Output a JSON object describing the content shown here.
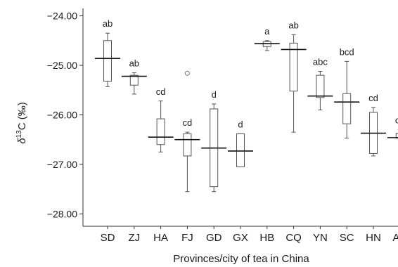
{
  "chart_data": {
    "type": "box",
    "title": "",
    "xlabel": "Provinces/city of tea in China",
    "ylabel_symbol": "δ",
    "ylabel_superscript": "13",
    "ylabel_suffix": "C (‰)",
    "ylim": [
      -28.25,
      -23.85
    ],
    "yticks": [
      -24.0,
      -25.0,
      -26.0,
      -27.0,
      -28.0
    ],
    "ytick_labels": [
      "−24.00",
      "−25.00",
      "−26.00",
      "−27.00",
      "−28.00"
    ],
    "grid": false,
    "categories": [
      "SD",
      "ZJ",
      "HA",
      "FJ",
      "GD",
      "GX",
      "HB",
      "CQ",
      "YN",
      "SC",
      "HN",
      "AH"
    ],
    "letters": [
      "ab",
      "ab",
      "cd",
      "cd",
      "d",
      "d",
      "a",
      "ab",
      "abc",
      "bcd",
      "cd",
      "cd"
    ],
    "boxes": [
      {
        "whisker_high": -24.35,
        "q3": -24.5,
        "q1": -25.32,
        "whisker_low": -25.43,
        "mean": -24.86,
        "outliers": []
      },
      {
        "whisker_high": -25.15,
        "q3": -25.2,
        "q1": -25.4,
        "whisker_low": -25.58,
        "mean": -25.22,
        "outliers": []
      },
      {
        "whisker_high": -25.72,
        "q3": -26.08,
        "q1": -26.6,
        "whisker_low": -26.75,
        "mean": -26.45,
        "outliers": []
      },
      {
        "whisker_high": -26.35,
        "q3": -26.38,
        "q1": -26.83,
        "whisker_low": -27.55,
        "mean": -26.5,
        "outliers": [
          -25.16
        ]
      },
      {
        "whisker_high": -25.78,
        "q3": -25.88,
        "q1": -27.45,
        "whisker_low": -27.55,
        "mean": -26.67,
        "outliers": []
      },
      {
        "whisker_high": -26.38,
        "q3": -26.38,
        "q1": -27.05,
        "whisker_low": -27.05,
        "mean": -26.73,
        "outliers": []
      },
      {
        "whisker_high": -24.5,
        "q3": -24.52,
        "q1": -24.62,
        "whisker_low": -24.7,
        "mean": -24.56,
        "outliers": []
      },
      {
        "whisker_high": -24.38,
        "q3": -24.55,
        "q1": -25.52,
        "whisker_low": -26.35,
        "mean": -24.68,
        "outliers": []
      },
      {
        "whisker_high": -25.12,
        "q3": -25.2,
        "q1": -25.65,
        "whisker_low": -25.9,
        "mean": -25.62,
        "outliers": []
      },
      {
        "whisker_high": -24.92,
        "q3": -25.57,
        "q1": -26.18,
        "whisker_low": -26.47,
        "mean": -25.74,
        "outliers": []
      },
      {
        "whisker_high": -25.85,
        "q3": -25.95,
        "q1": -26.78,
        "whisker_low": -26.83,
        "mean": -26.37,
        "outliers": []
      },
      {
        "whisker_high": -26.3,
        "q3": -26.37,
        "q1": -26.47,
        "whisker_low": -26.5,
        "mean": -26.46,
        "outliers": []
      }
    ]
  }
}
